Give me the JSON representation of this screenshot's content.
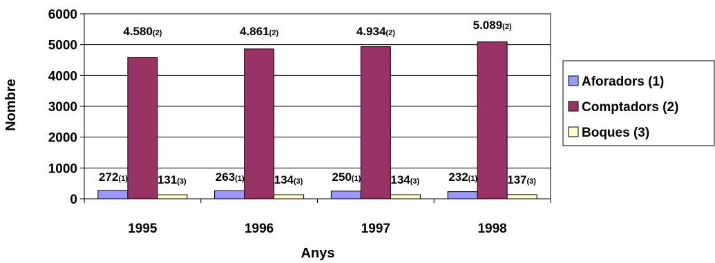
{
  "chart_data": {
    "type": "bar",
    "categories": [
      "1995",
      "1996",
      "1997",
      "1998"
    ],
    "series": [
      {
        "name": "Aforadors (1)",
        "color": "#9999ff",
        "values": [
          272,
          263,
          250,
          232
        ],
        "labels": [
          {
            "main": "272",
            "suffix": "(1)"
          },
          {
            "main": "263",
            "suffix": "(1)"
          },
          {
            "main": "250",
            "suffix": "(1)"
          },
          {
            "main": "232",
            "suffix": "(1)"
          }
        ]
      },
      {
        "name": "Comptadors (2)",
        "color": "#993366",
        "values": [
          4580,
          4861,
          4934,
          5089
        ],
        "labels": [
          {
            "main": "4.580",
            "suffix": "(2)"
          },
          {
            "main": "4.861",
            "suffix": "(2)"
          },
          {
            "main": "4.934",
            "suffix": "(2)"
          },
          {
            "main": "5.089",
            "suffix": "(2)"
          }
        ]
      },
      {
        "name": "Boques (3)",
        "color": "#ffffcc",
        "values": [
          131,
          134,
          134,
          137
        ],
        "labels": [
          {
            "main": "131",
            "suffix": "(3)"
          },
          {
            "main": "134",
            "suffix": "(3)"
          },
          {
            "main": "134",
            "suffix": "(3)"
          },
          {
            "main": "137",
            "suffix": "(3)"
          }
        ]
      }
    ],
    "yticks": [
      "0",
      "1000",
      "2000",
      "3000",
      "4000",
      "5000",
      "6000"
    ],
    "xlabel": "Anys",
    "ylabel": "Nombre",
    "ylim": [
      0,
      6000
    ],
    "grid": true,
    "legend_position": "right"
  }
}
